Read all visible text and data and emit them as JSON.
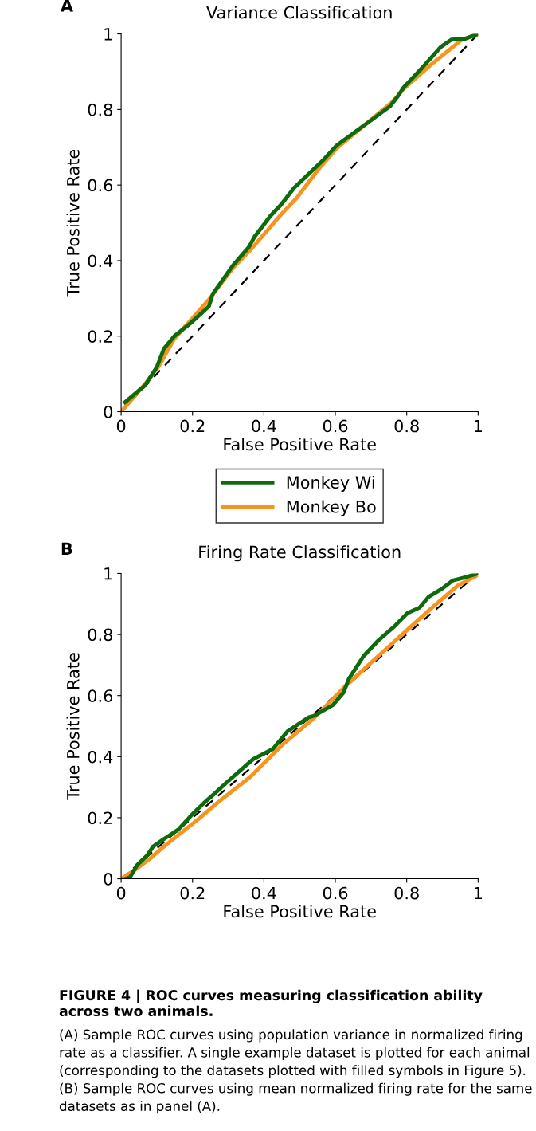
{
  "chart_data": [
    {
      "type": "line",
      "title": "Variance Classification",
      "xlabel": "False Positive Rate",
      "ylabel": "True Positive Rate",
      "xlim": [
        0,
        1
      ],
      "ylim": [
        0,
        1
      ],
      "xticks": [
        0,
        0.2,
        0.4,
        0.6,
        0.8,
        1
      ],
      "yticks": [
        0,
        0.2,
        0.4,
        0.6,
        0.8,
        1
      ],
      "grid": false,
      "legend": "bottom",
      "annotations": [
        "A"
      ],
      "series": [
        {
          "name": null,
          "color": "#000000",
          "line_style": "dashed",
          "x": [
            0,
            1
          ],
          "values": [
            0,
            1
          ]
        },
        {
          "name": "Monkey Bo",
          "color": "#f7941d",
          "x": [
            0,
            0.067,
            0.104,
            0.149,
            0.246,
            0.313,
            0.366,
            0.448,
            0.493,
            0.552,
            0.604,
            0.761,
            0.791,
            0.866,
            0.955,
            1
          ],
          "values": [
            0,
            0.073,
            0.118,
            0.193,
            0.297,
            0.38,
            0.432,
            0.522,
            0.567,
            0.641,
            0.697,
            0.821,
            0.854,
            0.917,
            0.985,
            1
          ]
        },
        {
          "name": "Monkey Wi",
          "color": "#0d6b0d",
          "x": [
            0.011,
            0.067,
            0.1,
            0.12,
            0.149,
            0.194,
            0.246,
            0.257,
            0.313,
            0.358,
            0.373,
            0.418,
            0.448,
            0.485,
            0.567,
            0.604,
            0.642,
            0.657,
            0.701,
            0.754,
            0.776,
            0.791,
            0.843,
            0.896,
            0.925,
            0.963,
            1
          ],
          "values": [
            0.025,
            0.07,
            0.118,
            0.167,
            0.2,
            0.234,
            0.279,
            0.312,
            0.387,
            0.436,
            0.462,
            0.518,
            0.548,
            0.593,
            0.667,
            0.705,
            0.731,
            0.742,
            0.772,
            0.809,
            0.836,
            0.858,
            0.91,
            0.966,
            0.985,
            0.987,
            1
          ]
        }
      ]
    },
    {
      "type": "line",
      "title": "Firing Rate Classification",
      "xlabel": "False Positive Rate",
      "ylabel": "True Positive Rate",
      "xlim": [
        0,
        1
      ],
      "ylim": [
        0,
        1
      ],
      "xticks": [
        0,
        0.2,
        0.4,
        0.6,
        0.8,
        1
      ],
      "yticks": [
        0,
        0.2,
        0.4,
        0.6,
        0.8,
        1
      ],
      "grid": false,
      "annotations": [
        "B",
        "FIGURE 4 | ROC curves measuring classification ability across two animals.",
        "(A) Sample ROC curves using population variance in normalized firing rate as a classifier. A single example dataset is plotted for each animal (corresponding to the datasets plotted with filled symbols in Figure 5). (B) Sample ROC curves using mean normalized firing rate for the same datasets as in panel (A)."
      ],
      "series": [
        {
          "name": null,
          "color": "#000000",
          "line_style": "dashed",
          "x": [
            0,
            1
          ],
          "values": [
            0,
            1
          ]
        },
        {
          "name": null,
          "color": "#f7941d",
          "x": [
            0,
            0.04,
            0.08,
            0.119,
            0.22,
            0.272,
            0.361,
            0.451,
            0.541,
            0.623,
            0.72,
            0.869,
            0.944,
            1
          ],
          "values": [
            0,
            0.03,
            0.065,
            0.105,
            0.199,
            0.251,
            0.333,
            0.438,
            0.527,
            0.625,
            0.729,
            0.886,
            0.961,
            0.995
          ]
        },
        {
          "name": null,
          "color": "#0d6b0d",
          "x": [
            0.013,
            0.025,
            0.045,
            0.074,
            0.089,
            0.122,
            0.16,
            0.204,
            0.231,
            0.26,
            0.298,
            0.37,
            0.425,
            0.466,
            0.526,
            0.541,
            0.593,
            0.623,
            0.638,
            0.679,
            0.72,
            0.765,
            0.802,
            0.836,
            0.862,
            0.899,
            0.929,
            0.966,
            1
          ],
          "values": [
            0,
            0.005,
            0.045,
            0.078,
            0.105,
            0.132,
            0.161,
            0.217,
            0.247,
            0.277,
            0.318,
            0.392,
            0.425,
            0.483,
            0.529,
            0.534,
            0.569,
            0.61,
            0.655,
            0.729,
            0.78,
            0.826,
            0.87,
            0.888,
            0.924,
            0.95,
            0.977,
            0.988,
            1
          ]
        }
      ]
    }
  ]
}
